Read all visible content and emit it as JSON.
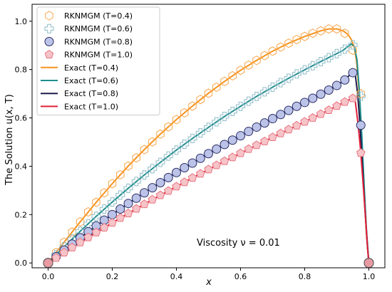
{
  "chart_data": {
    "type": "line",
    "xlabel": "x",
    "ylabel": "The Solution u(x, T)",
    "xlim": [
      -0.05,
      1.05
    ],
    "ylim": [
      -0.02,
      1.07
    ],
    "xticks": [
      0.0,
      0.2,
      0.4,
      0.6,
      0.8,
      1.0
    ],
    "yticks": [
      0.0,
      0.2,
      0.4,
      0.6,
      0.8,
      1.0
    ],
    "xtick_labels": [
      "0.0",
      "0.2",
      "0.4",
      "0.6",
      "0.8",
      "1.0"
    ],
    "ytick_labels": [
      "0.0",
      "0.2",
      "0.4",
      "0.6",
      "0.8",
      "1.0"
    ],
    "annotation": "Viscosity ν = 0.01",
    "legend_placement": "top-left",
    "grid": false,
    "x": [
      0.0,
      0.025,
      0.05,
      0.075,
      0.1,
      0.125,
      0.15,
      0.175,
      0.2,
      0.225,
      0.25,
      0.275,
      0.3,
      0.325,
      0.35,
      0.375,
      0.4,
      0.425,
      0.45,
      0.475,
      0.5,
      0.525,
      0.55,
      0.575,
      0.6,
      0.625,
      0.65,
      0.675,
      0.7,
      0.725,
      0.75,
      0.775,
      0.8,
      0.825,
      0.85,
      0.875,
      0.9,
      0.925,
      0.95,
      0.975,
      1.0
    ],
    "series": [
      {
        "name": "RKNMGM (T=0.4)",
        "kind": "markers",
        "marker": "hexagon",
        "color": "#f7a54a",
        "values": [
          0.0,
          0.043,
          0.086,
          0.128,
          0.17,
          0.211,
          0.251,
          0.29,
          0.328,
          0.365,
          0.401,
          0.435,
          0.469,
          0.501,
          0.533,
          0.563,
          0.593,
          0.621,
          0.649,
          0.676,
          0.702,
          0.727,
          0.751,
          0.774,
          0.797,
          0.818,
          0.838,
          0.858,
          0.876,
          0.893,
          0.909,
          0.924,
          0.937,
          0.95,
          0.96,
          0.968,
          0.968,
          0.95,
          0.88,
          0.7,
          0.0
        ]
      },
      {
        "name": "RKNMGM (T=0.6)",
        "kind": "markers",
        "marker": "plus",
        "color": "#8fbcc8",
        "values": [
          0.0,
          0.034,
          0.067,
          0.099,
          0.131,
          0.162,
          0.193,
          0.223,
          0.252,
          0.281,
          0.309,
          0.337,
          0.364,
          0.39,
          0.416,
          0.442,
          0.467,
          0.491,
          0.515,
          0.538,
          0.561,
          0.584,
          0.606,
          0.627,
          0.648,
          0.669,
          0.689,
          0.708,
          0.727,
          0.746,
          0.764,
          0.782,
          0.799,
          0.816,
          0.833,
          0.849,
          0.866,
          0.884,
          0.902,
          0.69,
          0.0
        ]
      },
      {
        "name": "RKNMGM (T=0.8)",
        "kind": "markers",
        "marker": "circle",
        "color": "#2a2e66",
        "fill": "#bcc3e8",
        "values": [
          0.0,
          0.026,
          0.053,
          0.078,
          0.104,
          0.129,
          0.153,
          0.177,
          0.2,
          0.223,
          0.246,
          0.268,
          0.29,
          0.311,
          0.332,
          0.353,
          0.374,
          0.394,
          0.413,
          0.433,
          0.452,
          0.471,
          0.49,
          0.508,
          0.526,
          0.544,
          0.562,
          0.579,
          0.597,
          0.614,
          0.631,
          0.648,
          0.664,
          0.681,
          0.698,
          0.715,
          0.734,
          0.757,
          0.787,
          0.57,
          0.0
        ]
      },
      {
        "name": "RKNMGM (T=1.0)",
        "kind": "markers",
        "marker": "pentagon",
        "color": "#e8747f",
        "fill": "#f6c4c8",
        "values": [
          0.0,
          0.021,
          0.043,
          0.064,
          0.085,
          0.106,
          0.126,
          0.146,
          0.166,
          0.186,
          0.205,
          0.224,
          0.243,
          0.262,
          0.28,
          0.298,
          0.316,
          0.334,
          0.352,
          0.369,
          0.387,
          0.404,
          0.421,
          0.437,
          0.454,
          0.471,
          0.487,
          0.503,
          0.52,
          0.536,
          0.552,
          0.568,
          0.584,
          0.6,
          0.616,
          0.632,
          0.649,
          0.666,
          0.681,
          0.455,
          0.0
        ]
      },
      {
        "name": "Exact (T=0.4)",
        "kind": "line",
        "color": "#f7931e",
        "x": [
          0.0,
          0.05,
          0.1,
          0.15,
          0.2,
          0.25,
          0.3,
          0.35,
          0.4,
          0.45,
          0.5,
          0.55,
          0.6,
          0.65,
          0.7,
          0.75,
          0.8,
          0.85,
          0.875,
          0.9,
          0.92,
          0.935,
          0.945,
          0.955,
          0.962,
          0.97,
          0.978,
          0.985,
          0.992,
          1.0
        ],
        "values": [
          0.0,
          0.086,
          0.17,
          0.251,
          0.328,
          0.401,
          0.469,
          0.533,
          0.593,
          0.649,
          0.702,
          0.751,
          0.797,
          0.838,
          0.876,
          0.909,
          0.937,
          0.96,
          0.968,
          0.968,
          0.96,
          0.945,
          0.925,
          0.89,
          0.83,
          0.7,
          0.5,
          0.3,
          0.13,
          0.0
        ]
      },
      {
        "name": "Exact (T=0.6)",
        "kind": "line",
        "color": "#1f8e8e",
        "x": [
          0.0,
          0.05,
          0.1,
          0.15,
          0.2,
          0.25,
          0.3,
          0.35,
          0.4,
          0.45,
          0.5,
          0.55,
          0.6,
          0.65,
          0.7,
          0.75,
          0.8,
          0.85,
          0.9,
          0.92,
          0.935,
          0.945,
          0.955,
          0.963,
          0.97,
          0.978,
          0.985,
          0.992,
          1.0
        ],
        "values": [
          0.0,
          0.067,
          0.131,
          0.193,
          0.252,
          0.309,
          0.364,
          0.416,
          0.467,
          0.515,
          0.561,
          0.606,
          0.648,
          0.689,
          0.727,
          0.764,
          0.799,
          0.833,
          0.866,
          0.88,
          0.896,
          0.906,
          0.895,
          0.84,
          0.72,
          0.53,
          0.33,
          0.15,
          0.0
        ]
      },
      {
        "name": "Exact (T=0.8)",
        "kind": "line",
        "color": "#1b1b4d",
        "x": [
          0.0,
          0.05,
          0.1,
          0.15,
          0.2,
          0.25,
          0.3,
          0.35,
          0.4,
          0.45,
          0.5,
          0.55,
          0.6,
          0.65,
          0.7,
          0.75,
          0.8,
          0.85,
          0.9,
          0.925,
          0.94,
          0.95,
          0.958,
          0.965,
          0.972,
          0.98,
          0.988,
          0.995,
          1.0
        ],
        "values": [
          0.0,
          0.053,
          0.104,
          0.153,
          0.2,
          0.246,
          0.29,
          0.332,
          0.374,
          0.413,
          0.452,
          0.49,
          0.526,
          0.562,
          0.597,
          0.631,
          0.664,
          0.698,
          0.734,
          0.757,
          0.777,
          0.789,
          0.775,
          0.7,
          0.58,
          0.4,
          0.22,
          0.08,
          0.0
        ]
      },
      {
        "name": "Exact (T=1.0)",
        "kind": "line",
        "color": "#e0203a",
        "x": [
          0.0,
          0.05,
          0.1,
          0.15,
          0.2,
          0.25,
          0.3,
          0.35,
          0.4,
          0.45,
          0.5,
          0.55,
          0.6,
          0.65,
          0.7,
          0.75,
          0.8,
          0.85,
          0.9,
          0.925,
          0.94,
          0.95,
          0.958,
          0.966,
          0.974,
          0.982,
          0.99,
          0.996,
          1.0
        ],
        "values": [
          0.0,
          0.043,
          0.085,
          0.126,
          0.166,
          0.205,
          0.243,
          0.28,
          0.316,
          0.352,
          0.387,
          0.421,
          0.454,
          0.487,
          0.52,
          0.552,
          0.584,
          0.616,
          0.649,
          0.666,
          0.676,
          0.684,
          0.665,
          0.58,
          0.47,
          0.33,
          0.18,
          0.06,
          0.0
        ]
      }
    ]
  }
}
